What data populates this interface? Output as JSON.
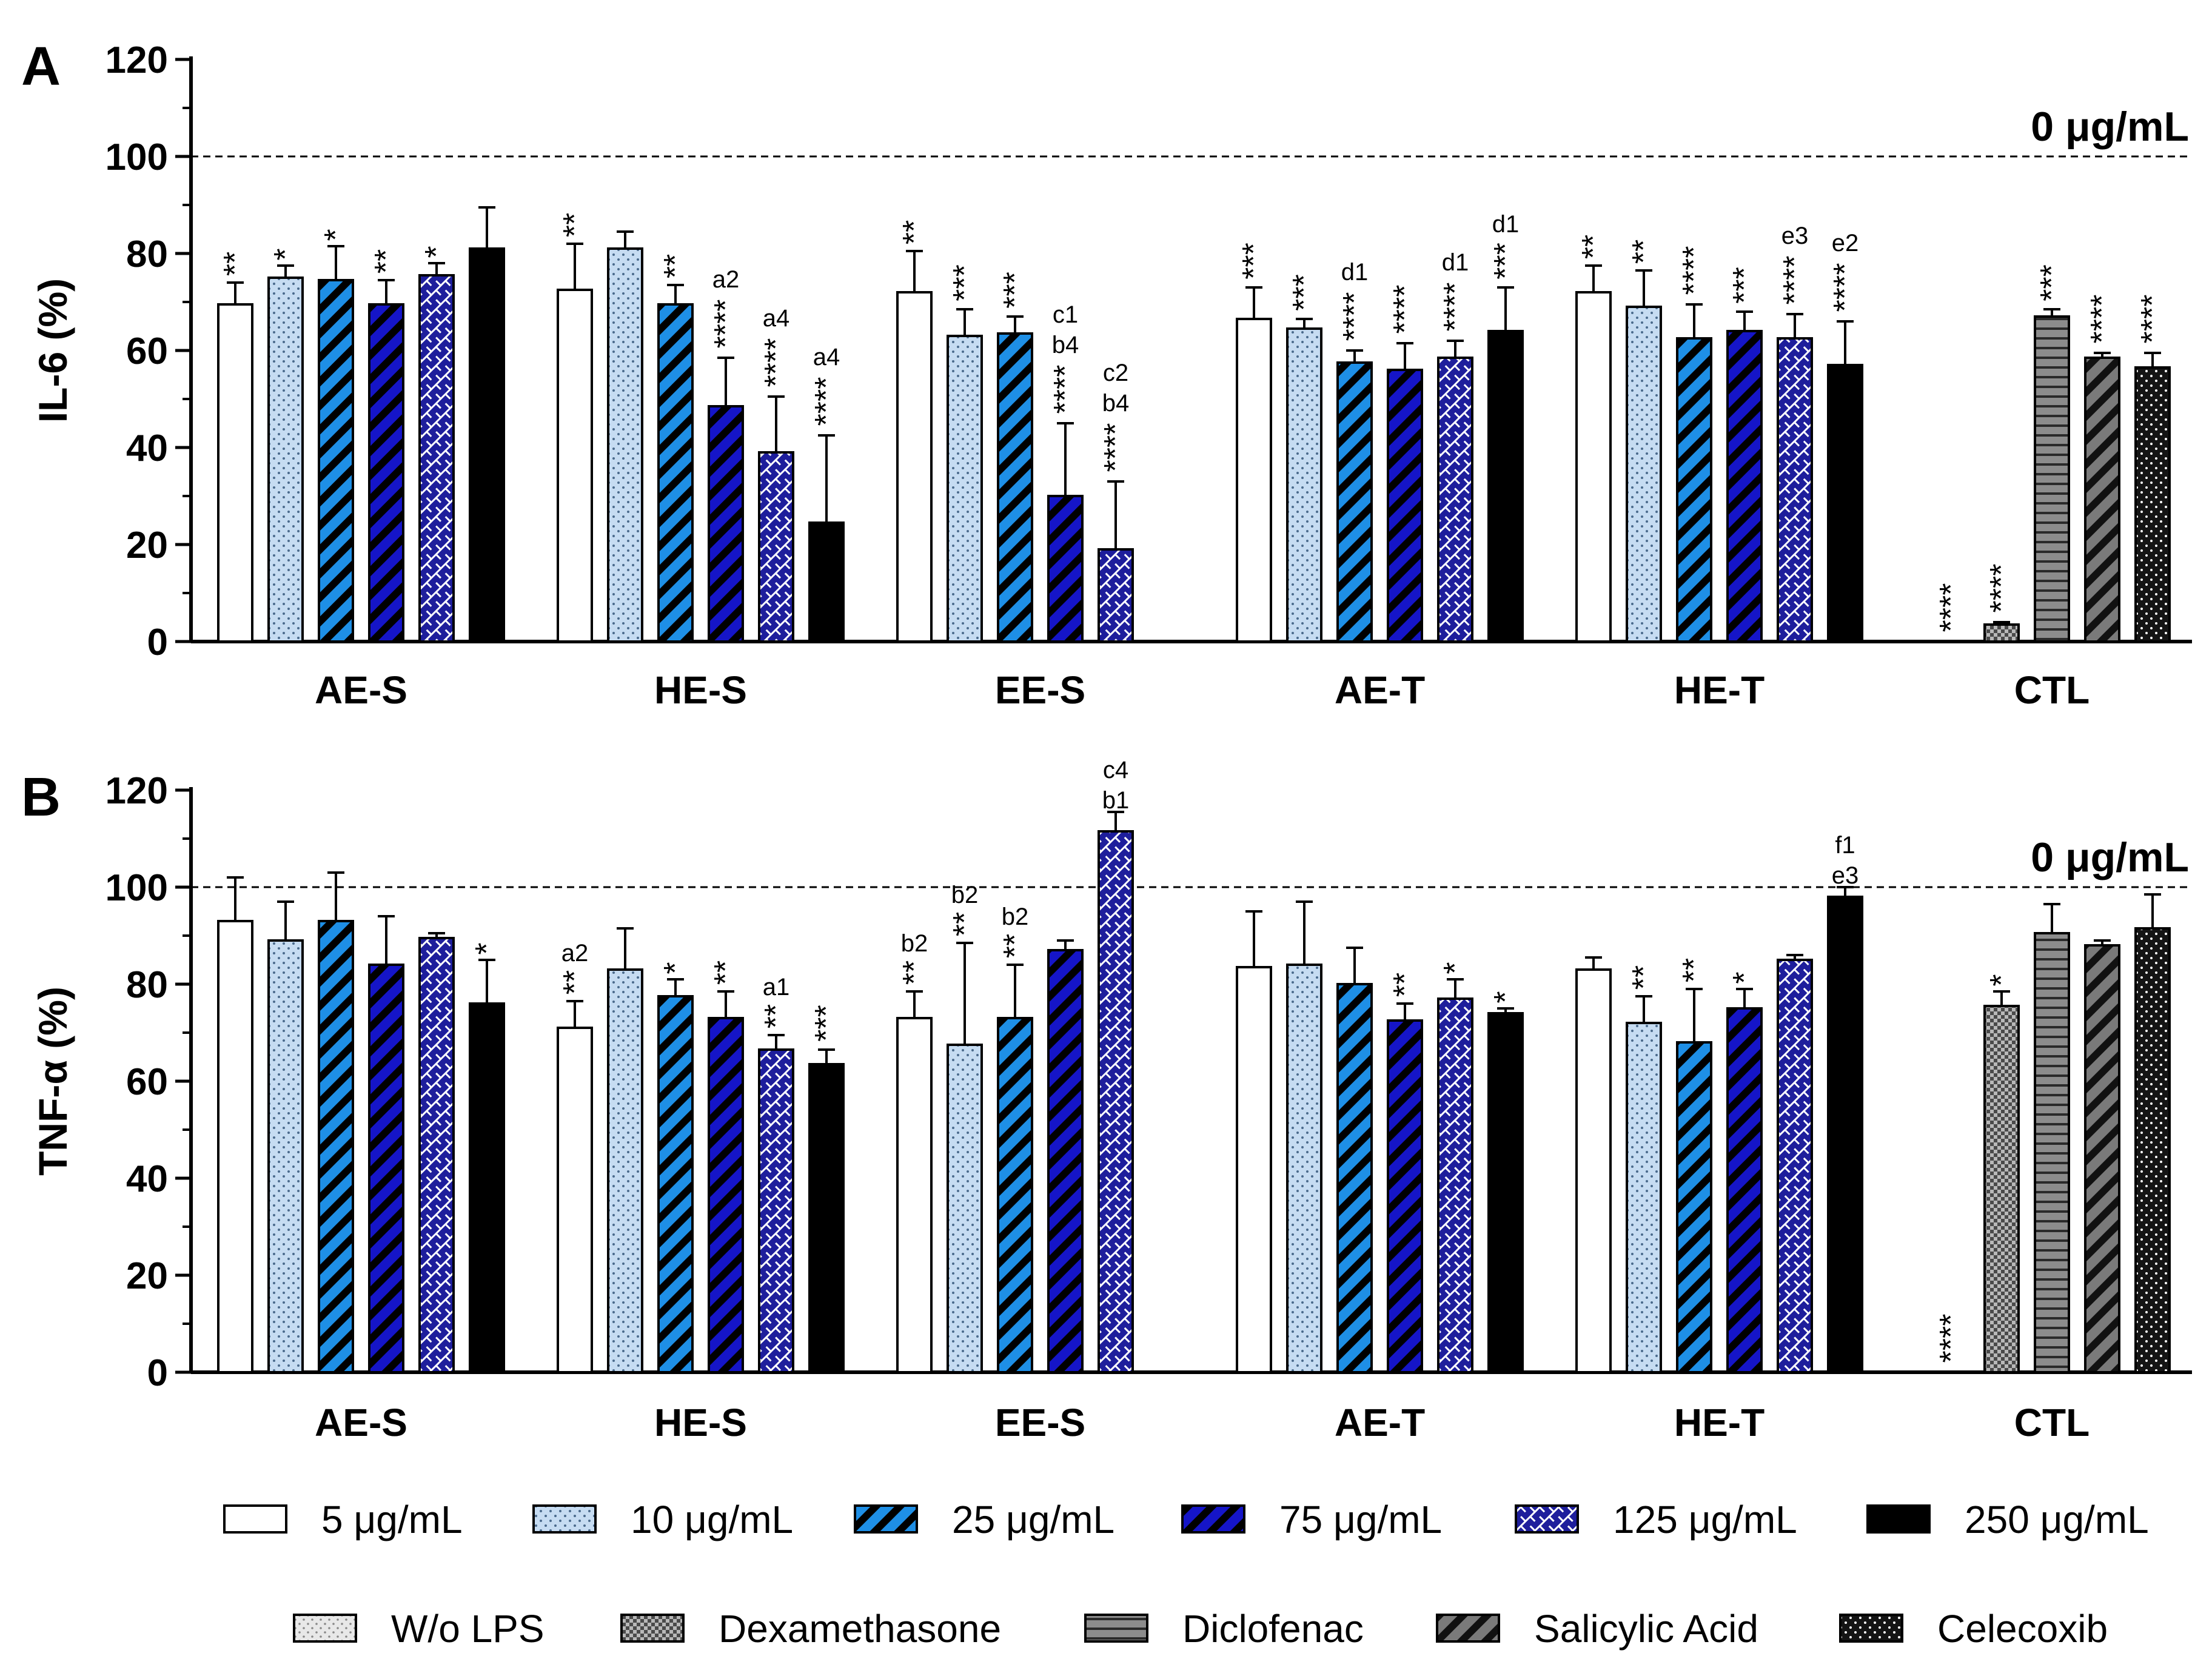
{
  "figure": {
    "reference_line_label": "0 μg/mL",
    "legend_doses": [
      {
        "label": "5 μg/mL",
        "pattern": "solid-white"
      },
      {
        "label": "10 μg/mL",
        "pattern": "dots-lightblue"
      },
      {
        "label": "25 μg/mL",
        "pattern": "stripes-blue"
      },
      {
        "label": "75 μg/mL",
        "pattern": "stripes-navy"
      },
      {
        "label": "125 μg/mL",
        "pattern": "brick-navy"
      },
      {
        "label": "250 μg/mL",
        "pattern": "solid-black"
      }
    ],
    "legend_controls": [
      {
        "label": "W/o LPS",
        "pattern": "dots-gray"
      },
      {
        "label": "Dexamethasone",
        "pattern": "checker-gray"
      },
      {
        "label": "Diclofenac",
        "pattern": "hlines-gray"
      },
      {
        "label": "Salicylic Acid",
        "pattern": "stripes-darkgray"
      },
      {
        "label": "Celecoxib",
        "pattern": "dots-black"
      }
    ],
    "colors": {
      "light_blue": "#c6dcf2",
      "blue": "#1e8fe6",
      "navy": "#14148c",
      "brick": "#1e1e9c",
      "gray": "#8c8c8c",
      "dark_gray": "#646464",
      "black": "#000000"
    }
  },
  "chart_data": [
    {
      "type": "bar",
      "panel": "A",
      "ylabel": "IL-6 (%)",
      "ylim": [
        0,
        120
      ],
      "yticks": [
        0,
        20,
        40,
        60,
        80,
        100,
        120
      ],
      "reference_line": 100,
      "groups": [
        "AE-S",
        "HE-S",
        "EE-S",
        "AE-T",
        "HE-T",
        "CTL"
      ],
      "treatment_series": [
        "5 μg/mL",
        "10 μg/mL",
        "25 μg/mL",
        "75 μg/mL",
        "125 μg/mL",
        "250 μg/mL"
      ],
      "control_series": [
        "W/o LPS",
        "Dexamethasone",
        "Diclofenac",
        "Salicylic Acid",
        "Celecoxib"
      ],
      "bars": [
        {
          "group": "AE-S",
          "series": "5 μg/mL",
          "value": 69.5,
          "error": 4.5,
          "stars": "**",
          "letters": []
        },
        {
          "group": "AE-S",
          "series": "10 μg/mL",
          "value": 75,
          "error": 2.5,
          "stars": "*",
          "letters": []
        },
        {
          "group": "AE-S",
          "series": "25 μg/mL",
          "value": 74.5,
          "error": 7,
          "stars": "*",
          "letters": []
        },
        {
          "group": "AE-S",
          "series": "75 μg/mL",
          "value": 69.5,
          "error": 5,
          "stars": "**",
          "letters": []
        },
        {
          "group": "AE-S",
          "series": "125 μg/mL",
          "value": 75.5,
          "error": 2.5,
          "stars": "*",
          "letters": []
        },
        {
          "group": "AE-S",
          "series": "250 μg/mL",
          "value": 81,
          "error": 8.5,
          "stars": "",
          "letters": []
        },
        {
          "group": "HE-S",
          "series": "5 μg/mL",
          "value": 72.5,
          "error": 9.5,
          "stars": "**",
          "letters": []
        },
        {
          "group": "HE-S",
          "series": "10 μg/mL",
          "value": 81,
          "error": 3.5,
          "stars": "",
          "letters": []
        },
        {
          "group": "HE-S",
          "series": "25 μg/mL",
          "value": 69.5,
          "error": 4,
          "stars": "**",
          "letters": []
        },
        {
          "group": "HE-S",
          "series": "75 μg/mL",
          "value": 48.5,
          "error": 10,
          "stars": "****",
          "letters": [
            "a2"
          ]
        },
        {
          "group": "HE-S",
          "series": "125 μg/mL",
          "value": 39,
          "error": 11.5,
          "stars": "****",
          "letters": [
            "a4"
          ]
        },
        {
          "group": "HE-S",
          "series": "250 μg/mL",
          "value": 24.5,
          "error": 18,
          "stars": "****",
          "letters": [
            "a4"
          ]
        },
        {
          "group": "EE-S",
          "series": "5 μg/mL",
          "value": 72,
          "error": 8.5,
          "stars": "**",
          "letters": []
        },
        {
          "group": "EE-S",
          "series": "10 μg/mL",
          "value": 63,
          "error": 5.5,
          "stars": "***",
          "letters": []
        },
        {
          "group": "EE-S",
          "series": "25 μg/mL",
          "value": 63.5,
          "error": 3.5,
          "stars": "***",
          "letters": []
        },
        {
          "group": "EE-S",
          "series": "75 μg/mL",
          "value": 30,
          "error": 15,
          "stars": "****",
          "letters": [
            "c1",
            "b4"
          ]
        },
        {
          "group": "EE-S",
          "series": "125 μg/mL",
          "value": 19,
          "error": 14,
          "stars": "****",
          "letters": [
            "c2",
            "b4"
          ]
        },
        {
          "group": "AE-T",
          "series": "5 μg/mL",
          "value": 66.5,
          "error": 6.5,
          "stars": "***",
          "letters": []
        },
        {
          "group": "AE-T",
          "series": "10 μg/mL",
          "value": 64.5,
          "error": 2,
          "stars": "***",
          "letters": []
        },
        {
          "group": "AE-T",
          "series": "25 μg/mL",
          "value": 57.5,
          "error": 2.5,
          "stars": "****",
          "letters": [
            "d1"
          ]
        },
        {
          "group": "AE-T",
          "series": "75 μg/mL",
          "value": 56,
          "error": 5.5,
          "stars": "****",
          "letters": []
        },
        {
          "group": "AE-T",
          "series": "125 μg/mL",
          "value": 58.5,
          "error": 3.5,
          "stars": "****",
          "letters": [
            "d1"
          ]
        },
        {
          "group": "AE-T",
          "series": "250 μg/mL",
          "value": 64,
          "error": 9,
          "stars": "***",
          "letters": [
            "d1"
          ]
        },
        {
          "group": "HE-T",
          "series": "5 μg/mL",
          "value": 72,
          "error": 5.5,
          "stars": "**",
          "letters": []
        },
        {
          "group": "HE-T",
          "series": "10 μg/mL",
          "value": 69,
          "error": 7.5,
          "stars": "**",
          "letters": []
        },
        {
          "group": "HE-T",
          "series": "25 μg/mL",
          "value": 62.5,
          "error": 7,
          "stars": "****",
          "letters": []
        },
        {
          "group": "HE-T",
          "series": "75 μg/mL",
          "value": 64,
          "error": 4,
          "stars": "***",
          "letters": []
        },
        {
          "group": "HE-T",
          "series": "125 μg/mL",
          "value": 62.5,
          "error": 5,
          "stars": "****",
          "letters": [
            "e3"
          ]
        },
        {
          "group": "HE-T",
          "series": "250 μg/mL",
          "value": 57,
          "error": 9,
          "stars": "****",
          "letters": [
            "e2"
          ]
        },
        {
          "group": "CTL",
          "series": "W/o LPS",
          "value": 0,
          "error": 0,
          "stars": "****",
          "letters": []
        },
        {
          "group": "CTL",
          "series": "Dexamethasone",
          "value": 3.5,
          "error": 0.5,
          "stars": "****",
          "letters": []
        },
        {
          "group": "CTL",
          "series": "Diclofenac",
          "value": 67,
          "error": 1.5,
          "stars": "***",
          "letters": []
        },
        {
          "group": "CTL",
          "series": "Salicylic Acid",
          "value": 58.5,
          "error": 1,
          "stars": "****",
          "letters": []
        },
        {
          "group": "CTL",
          "series": "Celecoxib",
          "value": 56.5,
          "error": 3,
          "stars": "****",
          "letters": []
        }
      ]
    },
    {
      "type": "bar",
      "panel": "B",
      "ylabel": "TNF-α (%)",
      "ylim": [
        0,
        120
      ],
      "yticks": [
        0,
        20,
        40,
        60,
        80,
        100,
        120
      ],
      "reference_line": 100,
      "groups": [
        "AE-S",
        "HE-S",
        "EE-S",
        "AE-T",
        "HE-T",
        "CTL"
      ],
      "treatment_series": [
        "5 μg/mL",
        "10 μg/mL",
        "25 μg/mL",
        "75 μg/mL",
        "125 μg/mL",
        "250 μg/mL"
      ],
      "control_series": [
        "W/o LPS",
        "Dexamethasone",
        "Diclofenac",
        "Salicylic Acid",
        "Celecoxib"
      ],
      "bars": [
        {
          "group": "AE-S",
          "series": "5 μg/mL",
          "value": 93,
          "error": 9,
          "stars": "",
          "letters": []
        },
        {
          "group": "AE-S",
          "series": "10 μg/mL",
          "value": 89,
          "error": 8,
          "stars": "",
          "letters": []
        },
        {
          "group": "AE-S",
          "series": "25 μg/mL",
          "value": 93,
          "error": 10,
          "stars": "",
          "letters": []
        },
        {
          "group": "AE-S",
          "series": "75 μg/mL",
          "value": 84,
          "error": 10,
          "stars": "",
          "letters": []
        },
        {
          "group": "AE-S",
          "series": "125 μg/mL",
          "value": 89.5,
          "error": 1,
          "stars": "",
          "letters": []
        },
        {
          "group": "AE-S",
          "series": "250 μg/mL",
          "value": 76,
          "error": 9,
          "stars": "*",
          "letters": []
        },
        {
          "group": "HE-S",
          "series": "5 μg/mL",
          "value": 71,
          "error": 5.5,
          "stars": "**",
          "letters": [
            "a2"
          ]
        },
        {
          "group": "HE-S",
          "series": "10 μg/mL",
          "value": 83,
          "error": 8.5,
          "stars": "",
          "letters": []
        },
        {
          "group": "HE-S",
          "series": "25 μg/mL",
          "value": 77.5,
          "error": 3.5,
          "stars": "*",
          "letters": []
        },
        {
          "group": "HE-S",
          "series": "75 μg/mL",
          "value": 73,
          "error": 5.5,
          "stars": "**",
          "letters": []
        },
        {
          "group": "HE-S",
          "series": "125 μg/mL",
          "value": 66.5,
          "error": 3,
          "stars": "**",
          "letters": [
            "a1"
          ]
        },
        {
          "group": "HE-S",
          "series": "250 μg/mL",
          "value": 63.5,
          "error": 3,
          "stars": "***",
          "letters": []
        },
        {
          "group": "EE-S",
          "series": "5 μg/mL",
          "value": 73,
          "error": 5.5,
          "stars": "**",
          "letters": [
            "b2"
          ]
        },
        {
          "group": "EE-S",
          "series": "10 μg/mL",
          "value": 67.5,
          "error": 21,
          "stars": "**",
          "letters": [
            "b2"
          ]
        },
        {
          "group": "EE-S",
          "series": "25 μg/mL",
          "value": 73,
          "error": 11,
          "stars": "**",
          "letters": [
            "b2"
          ]
        },
        {
          "group": "EE-S",
          "series": "75 μg/mL",
          "value": 87,
          "error": 2,
          "stars": "",
          "letters": []
        },
        {
          "group": "EE-S",
          "series": "125 μg/mL",
          "value": 111.5,
          "error": 4,
          "stars": "",
          "letters": [
            "c4",
            "b1"
          ]
        },
        {
          "group": "AE-T",
          "series": "5 μg/mL",
          "value": 83.5,
          "error": 11.5,
          "stars": "",
          "letters": []
        },
        {
          "group": "AE-T",
          "series": "10 μg/mL",
          "value": 84,
          "error": 13,
          "stars": "",
          "letters": []
        },
        {
          "group": "AE-T",
          "series": "25 μg/mL",
          "value": 80,
          "error": 7.5,
          "stars": "",
          "letters": []
        },
        {
          "group": "AE-T",
          "series": "75 μg/mL",
          "value": 72.5,
          "error": 3.5,
          "stars": "**",
          "letters": []
        },
        {
          "group": "AE-T",
          "series": "125 μg/mL",
          "value": 77,
          "error": 4,
          "stars": "*",
          "letters": []
        },
        {
          "group": "AE-T",
          "series": "250 μg/mL",
          "value": 74,
          "error": 1,
          "stars": "*",
          "letters": []
        },
        {
          "group": "HE-T",
          "series": "5 μg/mL",
          "value": 83,
          "error": 2.5,
          "stars": "",
          "letters": []
        },
        {
          "group": "HE-T",
          "series": "10 μg/mL",
          "value": 72,
          "error": 5.5,
          "stars": "**",
          "letters": []
        },
        {
          "group": "HE-T",
          "series": "25 μg/mL",
          "value": 68,
          "error": 11,
          "stars": "**",
          "letters": []
        },
        {
          "group": "HE-T",
          "series": "75 μg/mL",
          "value": 75,
          "error": 4,
          "stars": "*",
          "letters": []
        },
        {
          "group": "HE-T",
          "series": "125 μg/mL",
          "value": 85,
          "error": 1,
          "stars": "",
          "letters": []
        },
        {
          "group": "HE-T",
          "series": "250 μg/mL",
          "value": 98,
          "error": 2,
          "stars": "",
          "letters": [
            "f1",
            "e3"
          ]
        },
        {
          "group": "CTL",
          "series": "W/o LPS",
          "value": 0,
          "error": 0,
          "stars": "****",
          "letters": []
        },
        {
          "group": "CTL",
          "series": "Dexamethasone",
          "value": 75.5,
          "error": 3,
          "stars": "*",
          "letters": []
        },
        {
          "group": "CTL",
          "series": "Diclofenac",
          "value": 90.5,
          "error": 6,
          "stars": "",
          "letters": []
        },
        {
          "group": "CTL",
          "series": "Salicylic Acid",
          "value": 88,
          "error": 1,
          "stars": "",
          "letters": []
        },
        {
          "group": "CTL",
          "series": "Celecoxib",
          "value": 91.5,
          "error": 7,
          "stars": "",
          "letters": []
        }
      ]
    }
  ]
}
